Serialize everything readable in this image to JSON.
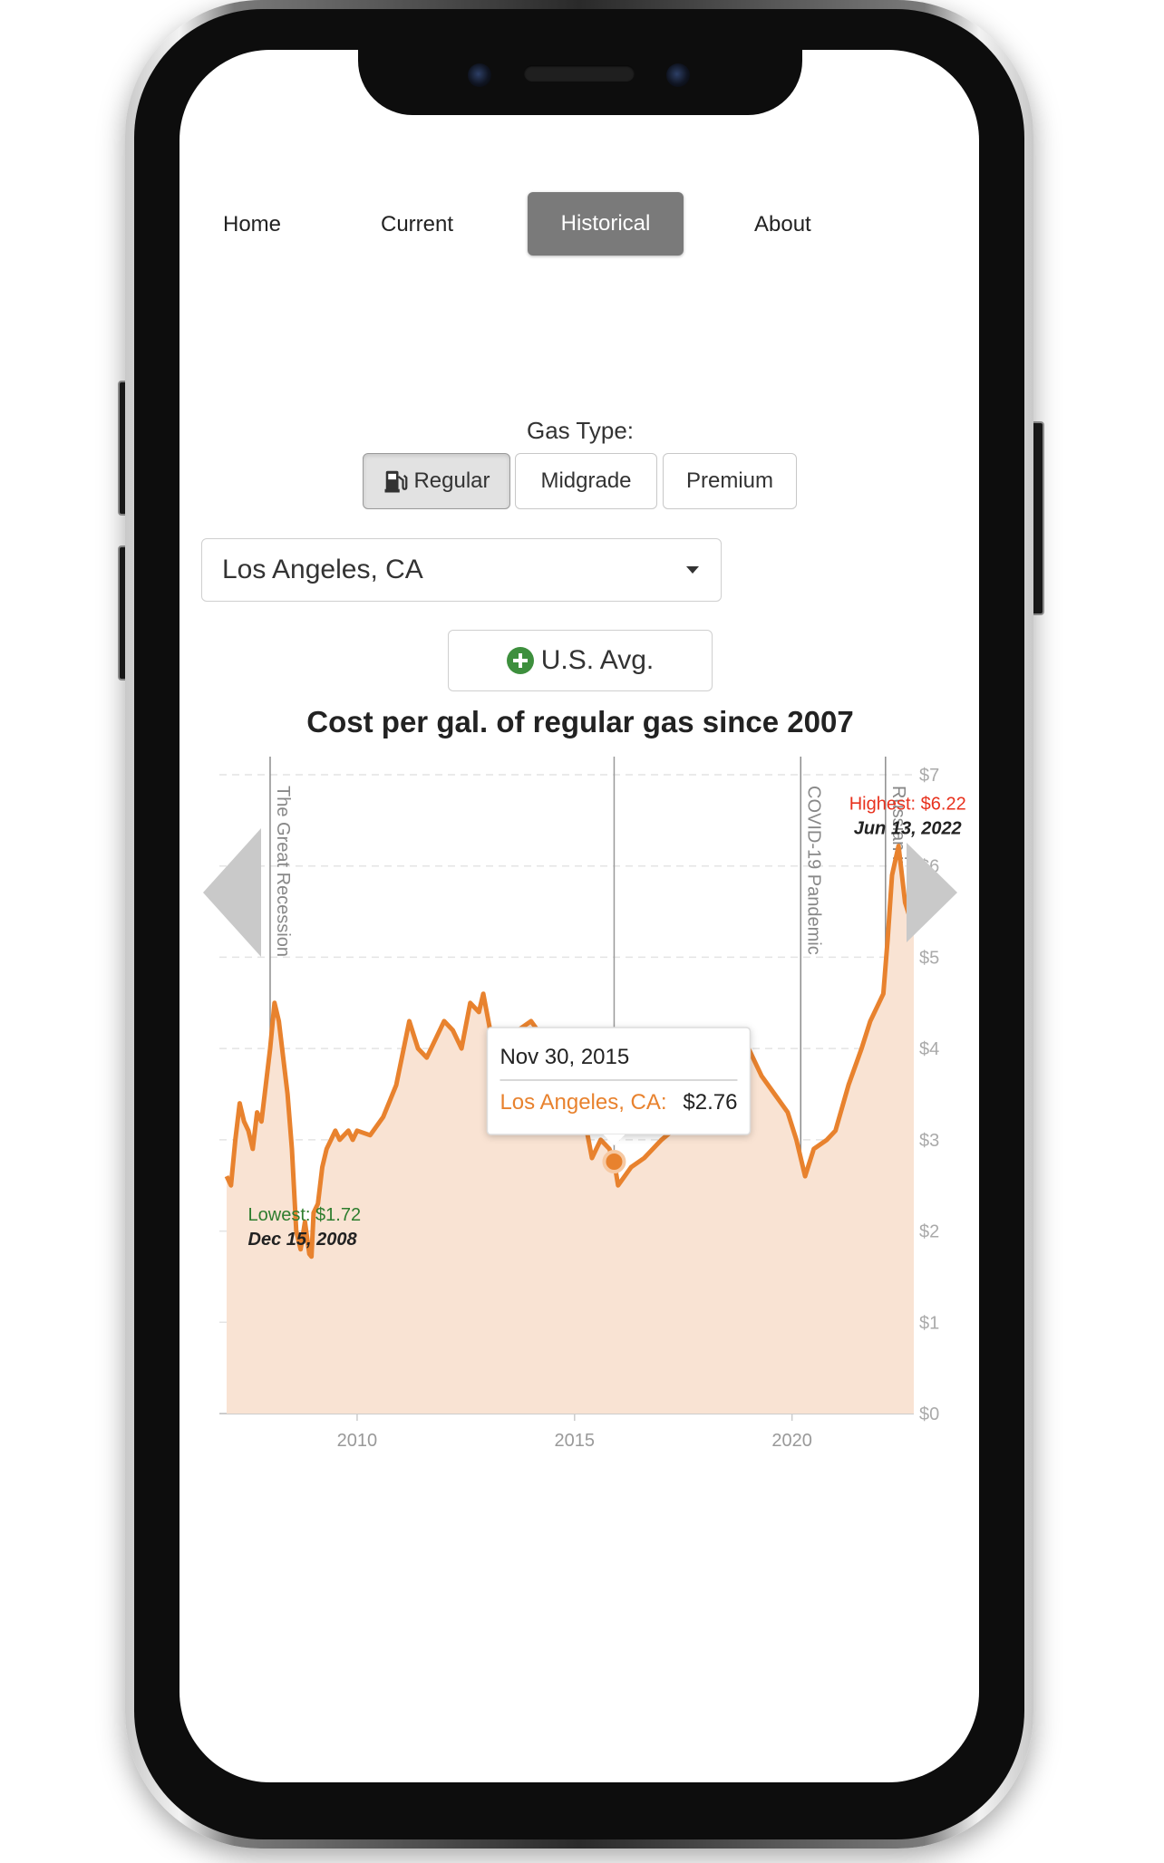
{
  "nav": {
    "items": [
      {
        "label": "Home"
      },
      {
        "label": "Current"
      },
      {
        "label": "Historical"
      },
      {
        "label": "About"
      }
    ],
    "active": "Historical"
  },
  "gas_type": {
    "label": "Gas Type:",
    "options": [
      "Regular",
      "Midgrade",
      "Premium"
    ],
    "selected": "Regular"
  },
  "location": {
    "selected": "Los Angeles, CA"
  },
  "compare_button": {
    "label": "U.S. Avg."
  },
  "chart_data": {
    "type": "area",
    "title": "Cost per gal. of regular gas since 2007",
    "xlabel": "",
    "ylabel": "",
    "xlim": [
      2007.0,
      2022.8
    ],
    "ylim": [
      0,
      7
    ],
    "x_ticks": [
      "2010",
      "2015",
      "2020"
    ],
    "y_ticks": [
      "$0",
      "$1",
      "$2",
      "$3",
      "$4",
      "$5",
      "$6",
      "$7"
    ],
    "grid": true,
    "colors": {
      "line": "#e8822e",
      "fill": "#f9e3d3"
    },
    "series": [
      {
        "name": "Los Angeles, CA",
        "x": [
          2007.0,
          2007.1,
          2007.2,
          2007.3,
          2007.4,
          2007.5,
          2007.6,
          2007.7,
          2007.8,
          2007.9,
          2008.0,
          2008.1,
          2008.2,
          2008.3,
          2008.4,
          2008.5,
          2008.6,
          2008.7,
          2008.8,
          2008.9,
          2008.95,
          2009.0,
          2009.1,
          2009.2,
          2009.3,
          2009.4,
          2009.5,
          2009.6,
          2009.7,
          2009.8,
          2009.9,
          2010.0,
          2010.3,
          2010.6,
          2010.9,
          2011.2,
          2011.4,
          2011.6,
          2011.8,
          2012.0,
          2012.2,
          2012.4,
          2012.6,
          2012.8,
          2012.9,
          2013.1,
          2013.4,
          2013.7,
          2014.0,
          2014.3,
          2014.6,
          2014.8,
          2015.0,
          2015.2,
          2015.4,
          2015.6,
          2015.8,
          2015.91,
          2016.0,
          2016.3,
          2016.6,
          2017.0,
          2017.5,
          2018.0,
          2018.5,
          2018.8,
          2019.0,
          2019.3,
          2019.6,
          2019.9,
          2020.1,
          2020.3,
          2020.5,
          2020.8,
          2021.0,
          2021.3,
          2021.6,
          2021.8,
          2022.0,
          2022.1,
          2022.2,
          2022.3,
          2022.45,
          2022.6,
          2022.8
        ],
        "values": [
          2.6,
          2.5,
          3.0,
          3.4,
          3.2,
          3.1,
          2.9,
          3.3,
          3.2,
          3.6,
          4.0,
          4.5,
          4.3,
          3.9,
          3.5,
          2.9,
          2.0,
          1.8,
          2.1,
          1.75,
          1.72,
          2.2,
          2.3,
          2.7,
          2.9,
          3.0,
          3.1,
          3.0,
          3.05,
          3.1,
          3.0,
          3.1,
          3.05,
          3.25,
          3.6,
          4.3,
          4.0,
          3.9,
          4.1,
          4.3,
          4.2,
          4.0,
          4.5,
          4.4,
          4.6,
          4.1,
          3.9,
          4.2,
          4.3,
          4.1,
          3.9,
          4.0,
          3.6,
          3.3,
          2.8,
          3.0,
          2.9,
          2.76,
          2.5,
          2.7,
          2.8,
          3.0,
          3.2,
          3.3,
          3.6,
          3.8,
          4.0,
          3.7,
          3.5,
          3.3,
          3.0,
          2.6,
          2.9,
          3.0,
          3.1,
          3.6,
          4.0,
          4.3,
          4.5,
          4.6,
          5.2,
          5.9,
          6.22,
          5.6,
          5.3
        ]
      }
    ],
    "events": [
      {
        "label": "The Great Recession",
        "x": 2008.0
      },
      {
        "label": "COVID-19 Pandemic",
        "x": 2020.2
      },
      {
        "label": "Russian invasion of Ukraine",
        "x": 2022.15
      }
    ],
    "annotations": {
      "lowest": {
        "label": "Lowest:",
        "value": "$1.72",
        "date": "Dec 15, 2008",
        "x": 2008.95,
        "y": 1.72
      },
      "highest": {
        "label": "Highest:",
        "value": "$6.22",
        "date": "Jun 13, 2022",
        "x": 2022.45,
        "y": 6.22
      }
    },
    "tooltip": {
      "date": "Nov 30, 2015",
      "series": "Los Angeles, CA:",
      "value": "$2.76",
      "x": 2015.91,
      "y": 2.76
    }
  }
}
